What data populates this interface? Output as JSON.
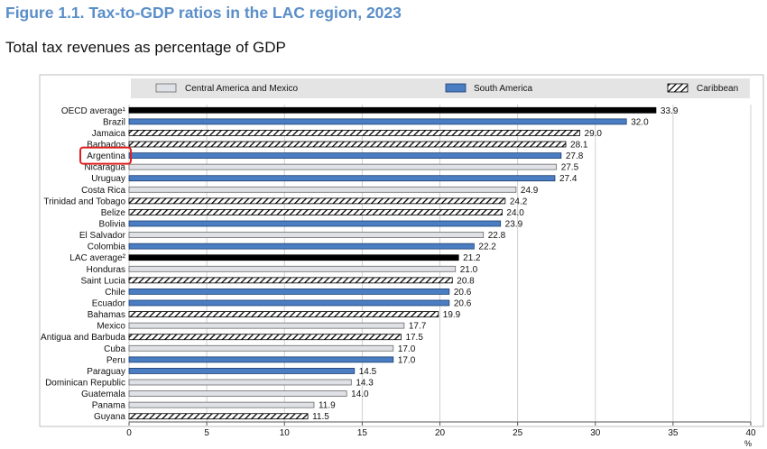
{
  "title": "Figure 1.1. Tax-to-GDP ratios in the LAC region, 2023",
  "subtitle": "Total tax revenues as percentage of GDP",
  "colors": {
    "title": "#5a8ec9",
    "central_america_and_mexico": "#dfe1e6",
    "south_america": "#4a7dc2",
    "caribbean_hatch": "#000000",
    "average": "#000000",
    "highlight_box": "#e02020"
  },
  "chart_data": {
    "type": "bar",
    "orientation": "horizontal",
    "xlabel": "%",
    "xlim": [
      0,
      40
    ],
    "xticks": [
      0,
      5,
      10,
      15,
      20,
      25,
      30,
      35,
      40
    ],
    "grid": "vertical",
    "legend_position": "top",
    "legend": [
      {
        "key": "central",
        "label": "Central America and Mexico",
        "style": "light-grey"
      },
      {
        "key": "south",
        "label": "South America",
        "style": "blue"
      },
      {
        "key": "caribbean",
        "label": "Caribbean",
        "style": "diagonal-hatch"
      }
    ],
    "highlighted_category": "Argentina",
    "categories": [
      {
        "label": "OECD average¹",
        "value": 33.9,
        "group": "average"
      },
      {
        "label": "Brazil",
        "value": 32.0,
        "group": "south"
      },
      {
        "label": "Jamaica",
        "value": 29.0,
        "group": "caribbean"
      },
      {
        "label": "Barbados",
        "value": 28.1,
        "group": "caribbean"
      },
      {
        "label": "Argentina",
        "value": 27.8,
        "group": "south"
      },
      {
        "label": "Nicaragua",
        "value": 27.5,
        "group": "central"
      },
      {
        "label": "Uruguay",
        "value": 27.4,
        "group": "south"
      },
      {
        "label": "Costa Rica",
        "value": 24.9,
        "group": "central"
      },
      {
        "label": "Trinidad and Tobago",
        "value": 24.2,
        "group": "caribbean"
      },
      {
        "label": "Belize",
        "value": 24.0,
        "group": "caribbean"
      },
      {
        "label": "Bolivia",
        "value": 23.9,
        "group": "south"
      },
      {
        "label": "El Salvador",
        "value": 22.8,
        "group": "central"
      },
      {
        "label": "Colombia",
        "value": 22.2,
        "group": "south"
      },
      {
        "label": "LAC average²",
        "value": 21.2,
        "group": "average"
      },
      {
        "label": "Honduras",
        "value": 21.0,
        "group": "central"
      },
      {
        "label": "Saint Lucia",
        "value": 20.8,
        "group": "caribbean"
      },
      {
        "label": "Chile",
        "value": 20.6,
        "group": "south"
      },
      {
        "label": "Ecuador",
        "value": 20.6,
        "group": "south"
      },
      {
        "label": "Bahamas",
        "value": 19.9,
        "group": "caribbean"
      },
      {
        "label": "Mexico",
        "value": 17.7,
        "group": "central"
      },
      {
        "label": "Antigua and Barbuda",
        "value": 17.5,
        "group": "caribbean"
      },
      {
        "label": "Cuba",
        "value": 17.0,
        "group": "central"
      },
      {
        "label": "Peru",
        "value": 17.0,
        "group": "south"
      },
      {
        "label": "Paraguay",
        "value": 14.5,
        "group": "south"
      },
      {
        "label": "Dominican Republic",
        "value": 14.3,
        "group": "central"
      },
      {
        "label": "Guatemala",
        "value": 14.0,
        "group": "central"
      },
      {
        "label": "Panama",
        "value": 11.9,
        "group": "central"
      },
      {
        "label": "Guyana",
        "value": 11.5,
        "group": "caribbean"
      }
    ]
  }
}
